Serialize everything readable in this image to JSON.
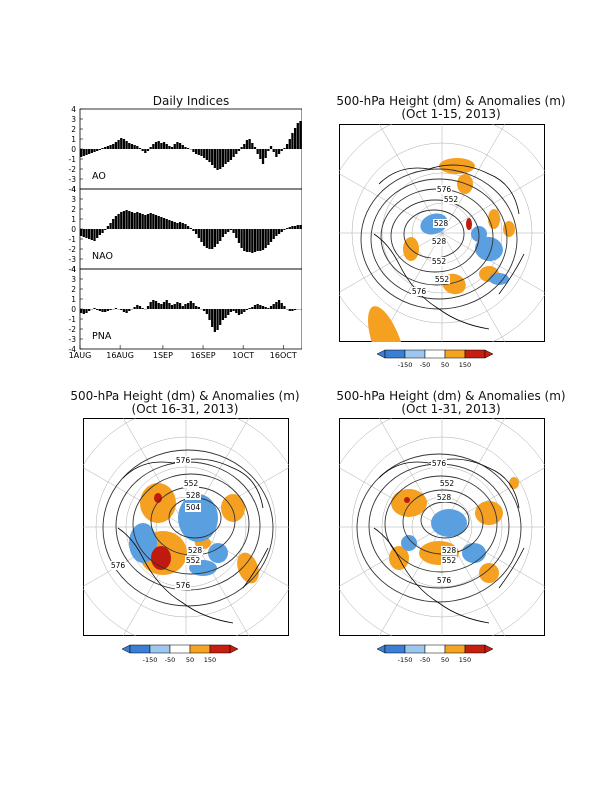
{
  "indices": {
    "title": "Daily Indices",
    "ylim": [
      -4,
      4
    ],
    "yticks": [
      4,
      3,
      2,
      1,
      0,
      -1,
      -2,
      -3,
      -4
    ],
    "xticks": [
      "1AUG",
      "16AUG",
      "1SEP",
      "16SEP",
      "1OCT",
      "16OCT"
    ],
    "series_labels": [
      "AO",
      "NAO",
      "PNA"
    ]
  },
  "maps": [
    {
      "title1": "500-hPa Height (dm) & Anomalies (m)",
      "title2": "(Oct 1-15, 2013)"
    },
    {
      "title1": "500-hPa Height (dm) & Anomalies (m)",
      "title2": "(Oct 16-31, 2013)"
    },
    {
      "title1": "500-hPa Height (dm) & Anomalies (m)",
      "title2": "(Oct 1-31, 2013)"
    }
  ],
  "colorbar": {
    "labels": [
      "-150",
      "-50",
      "50",
      "150"
    ],
    "colors": [
      "#3a7fd5",
      "#9ec7ee",
      "#ffffff",
      "#f5a422",
      "#c81e10"
    ]
  },
  "contour_labels": [
    "576",
    "552",
    "528",
    "504"
  ],
  "colors": {
    "pos": "#f5a020",
    "neg": "#5a9fe0",
    "strong_pos": "#c01a10",
    "line": "#333333"
  },
  "chart_data": [
    {
      "type": "bar",
      "title": "Daily Indices",
      "name": "AO",
      "ylim": [
        -4,
        4
      ],
      "x_start": "1AUG",
      "values": [
        -0.8,
        -0.7,
        -0.6,
        -0.5,
        -0.4,
        -0.3,
        -0.2,
        -0.1,
        0.1,
        0.2,
        0.3,
        0.4,
        0.5,
        0.7,
        0.9,
        1.1,
        1.0,
        0.8,
        0.6,
        0.5,
        0.4,
        0.3,
        0.1,
        -0.2,
        -0.4,
        -0.2,
        0.2,
        0.5,
        0.7,
        0.8,
        0.6,
        0.7,
        0.5,
        0.3,
        0.2,
        0.5,
        0.7,
        0.6,
        0.4,
        0.2,
        0.1,
        0.0,
        -0.3,
        -0.5,
        -0.6,
        -0.7,
        -0.9,
        -1.1,
        -1.3,
        -1.6,
        -1.9,
        -2.1,
        -2.0,
        -1.8,
        -1.5,
        -1.3,
        -1.1,
        -0.8,
        -0.5,
        -0.2,
        0.2,
        0.5,
        0.9,
        1.0,
        0.6,
        0.2,
        -0.5,
        -1.0,
        -1.5,
        -0.9,
        -0.2,
        0.3,
        -0.3,
        -0.8,
        -0.5,
        -0.2,
        0.1,
        0.5,
        1.0,
        1.6,
        2.1,
        2.6,
        2.8
      ]
    },
    {
      "type": "bar",
      "name": "NAO",
      "ylim": [
        -4,
        4
      ],
      "x_start": "1AUG",
      "values": [
        -0.7,
        -0.8,
        -0.9,
        -1.0,
        -1.1,
        -1.2,
        -0.9,
        -0.6,
        -0.4,
        -0.1,
        0.3,
        0.6,
        1.0,
        1.3,
        1.5,
        1.7,
        1.8,
        1.9,
        1.8,
        1.7,
        1.6,
        1.7,
        1.6,
        1.5,
        1.4,
        1.5,
        1.6,
        1.5,
        1.4,
        1.3,
        1.2,
        1.1,
        1.0,
        0.9,
        0.8,
        0.7,
        0.6,
        0.7,
        0.6,
        0.5,
        0.3,
        0.1,
        -0.2,
        -0.5,
        -0.9,
        -1.3,
        -1.7,
        -1.9,
        -2.0,
        -2.0,
        -1.8,
        -1.5,
        -1.2,
        -0.8,
        -0.5,
        -0.3,
        -0.1,
        -0.4,
        -0.9,
        -1.4,
        -1.9,
        -2.2,
        -2.3,
        -2.3,
        -2.4,
        -2.3,
        -2.2,
        -2.2,
        -2.1,
        -1.9,
        -1.6,
        -1.3,
        -1.0,
        -0.7,
        -0.5,
        -0.3,
        -0.1,
        0.1,
        0.2,
        0.3,
        0.3,
        0.4,
        0.4
      ]
    },
    {
      "type": "bar",
      "name": "PNA",
      "ylim": [
        -4,
        4
      ],
      "x_start": "1AUG",
      "xticks": [
        "1AUG",
        "16AUG",
        "1SEP",
        "16SEP",
        "1OCT",
        "16OCT"
      ],
      "values": [
        -0.4,
        -0.5,
        -0.4,
        -0.2,
        0.0,
        0.1,
        -0.1,
        -0.2,
        -0.3,
        -0.3,
        -0.2,
        -0.1,
        0.0,
        0.1,
        0.0,
        -0.1,
        -0.3,
        -0.4,
        -0.2,
        0.0,
        0.2,
        0.4,
        0.3,
        0.1,
        0.0,
        0.3,
        0.7,
        0.9,
        0.8,
        0.6,
        0.5,
        0.7,
        0.9,
        0.6,
        0.4,
        0.5,
        0.7,
        0.6,
        0.3,
        0.5,
        0.6,
        0.8,
        0.6,
        0.3,
        0.2,
        0.0,
        -0.2,
        -0.5,
        -1.1,
        -1.8,
        -2.3,
        -2.1,
        -1.6,
        -1.1,
        -0.9,
        -0.6,
        -0.3,
        -0.2,
        -0.4,
        -0.6,
        -0.5,
        -0.3,
        -0.1,
        0.1,
        0.2,
        0.4,
        0.5,
        0.4,
        0.3,
        0.2,
        0.1,
        0.3,
        0.5,
        0.7,
        0.9,
        0.6,
        0.3,
        0.0,
        -0.2,
        -0.2,
        -0.1,
        0.0,
        0.0
      ]
    }
  ]
}
